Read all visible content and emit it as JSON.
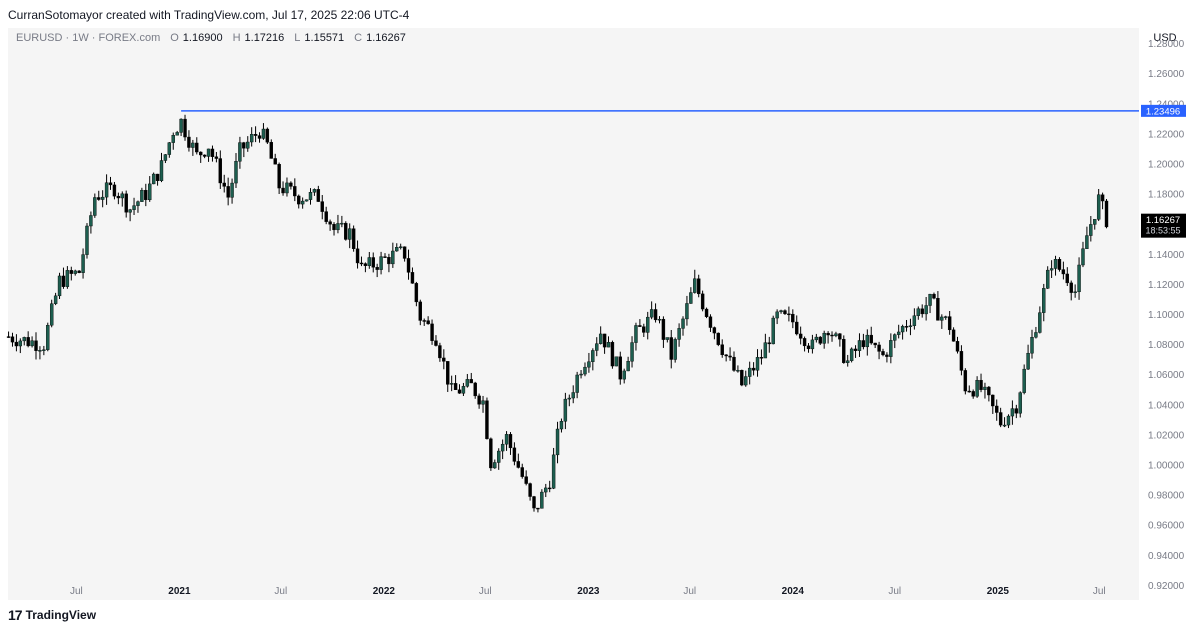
{
  "header": {
    "attribution": "CurranSotomayor created with TradingView.com, Jul 17, 2025 22:06 UTC-4"
  },
  "legend": {
    "symbol": "EURUSD · 1W · FOREX.com",
    "open_key": "O",
    "open": "1.16900",
    "high_key": "H",
    "high": "1.17216",
    "low_key": "L",
    "low": "1.15571",
    "close_key": "C",
    "close": "1.16267"
  },
  "price_axis": {
    "currency": "USD"
  },
  "footer": {
    "brand": "TradingView",
    "logo_text": "17"
  },
  "colors": {
    "up": "#1d5e4f",
    "down": "#000000",
    "line": "#2962ff",
    "panel": "#f5f5f5"
  },
  "chart_data": {
    "type": "candlestick",
    "symbol": "EURUSD",
    "interval": "1W",
    "ylim": [
      0.91,
      1.29
    ],
    "y_ticks": [
      "1.28000",
      "1.26000",
      "1.24000",
      "1.22000",
      "1.20000",
      "1.18000",
      "1.16000",
      "1.14000",
      "1.12000",
      "1.10000",
      "1.08000",
      "1.06000",
      "1.04000",
      "1.02000",
      "1.00000",
      "0.98000",
      "0.96000",
      "0.94000",
      "0.92000"
    ],
    "x_ticks": [
      {
        "label": "Jul",
        "date": "2020-07-01",
        "bold": false
      },
      {
        "label": "2021",
        "date": "2021-01-01",
        "bold": true
      },
      {
        "label": "Jul",
        "date": "2021-07-01",
        "bold": false
      },
      {
        "label": "2022",
        "date": "2022-01-01",
        "bold": true
      },
      {
        "label": "Jul",
        "date": "2022-07-01",
        "bold": false
      },
      {
        "label": "2023",
        "date": "2023-01-01",
        "bold": true
      },
      {
        "label": "Jul",
        "date": "2023-07-01",
        "bold": false
      },
      {
        "label": "2024",
        "date": "2024-01-01",
        "bold": true
      },
      {
        "label": "Jul",
        "date": "2024-07-01",
        "bold": false
      },
      {
        "label": "2025",
        "date": "2025-01-01",
        "bold": true
      },
      {
        "label": "Jul",
        "date": "2025-07-01",
        "bold": false
      }
    ],
    "x_range": [
      "2020-03-01",
      "2025-09-10"
    ],
    "horizontal_line": {
      "value": 1.23496,
      "label": "1.23496",
      "start_date": "2021-01-04"
    },
    "last_price": {
      "value": 1.16267,
      "label": "1.16267",
      "countdown": "18:53:55"
    },
    "close_series": [
      [
        "2020-03-02",
        1.085
      ],
      [
        "2020-04-06",
        1.082
      ],
      [
        "2020-05-04",
        1.08
      ],
      [
        "2020-06-01",
        1.122
      ],
      [
        "2020-07-06",
        1.128
      ],
      [
        "2020-08-03",
        1.178
      ],
      [
        "2020-09-07",
        1.184
      ],
      [
        "2020-10-05",
        1.17
      ],
      [
        "2020-11-02",
        1.18
      ],
      [
        "2020-11-30",
        1.198
      ],
      [
        "2020-12-21",
        1.222
      ],
      [
        "2021-01-04",
        1.228
      ],
      [
        "2021-02-01",
        1.205
      ],
      [
        "2021-02-22",
        1.212
      ],
      [
        "2021-03-29",
        1.178
      ],
      [
        "2021-04-19",
        1.208
      ],
      [
        "2021-05-24",
        1.222
      ],
      [
        "2021-06-07",
        1.212
      ],
      [
        "2021-06-28",
        1.185
      ],
      [
        "2021-08-02",
        1.178
      ],
      [
        "2021-09-06",
        1.178
      ],
      [
        "2021-10-04",
        1.156
      ],
      [
        "2021-11-01",
        1.154
      ],
      [
        "2021-11-22",
        1.13
      ],
      [
        "2021-12-20",
        1.134
      ],
      [
        "2022-01-24",
        1.14
      ],
      [
        "2022-02-07",
        1.14
      ],
      [
        "2022-03-07",
        1.098
      ],
      [
        "2022-04-04",
        1.085
      ],
      [
        "2022-05-02",
        1.048
      ],
      [
        "2022-06-06",
        1.052
      ],
      [
        "2022-06-27",
        1.042
      ],
      [
        "2022-07-11",
        1.002
      ],
      [
        "2022-08-08",
        1.018
      ],
      [
        "2022-09-05",
        0.992
      ],
      [
        "2022-09-26",
        0.968
      ],
      [
        "2022-10-24",
        0.99
      ],
      [
        "2022-11-14",
        1.032
      ],
      [
        "2022-12-19",
        1.065
      ],
      [
        "2023-01-23",
        1.088
      ],
      [
        "2023-02-27",
        1.06
      ],
      [
        "2023-03-27",
        1.087
      ],
      [
        "2023-05-01",
        1.1
      ],
      [
        "2023-05-29",
        1.072
      ],
      [
        "2023-07-10",
        1.12
      ],
      [
        "2023-08-07",
        1.095
      ],
      [
        "2023-09-04",
        1.072
      ],
      [
        "2023-10-02",
        1.053
      ],
      [
        "2023-11-06",
        1.072
      ],
      [
        "2023-12-04",
        1.098
      ],
      [
        "2024-01-01",
        1.095
      ],
      [
        "2024-02-05",
        1.078
      ],
      [
        "2024-03-04",
        1.092
      ],
      [
        "2024-04-08",
        1.068
      ],
      [
        "2024-05-06",
        1.083
      ],
      [
        "2024-06-10",
        1.072
      ],
      [
        "2024-07-08",
        1.088
      ],
      [
        "2024-08-05",
        1.1
      ],
      [
        "2024-09-02",
        1.108
      ],
      [
        "2024-10-07",
        1.092
      ],
      [
        "2024-11-04",
        1.052
      ],
      [
        "2024-12-02",
        1.05
      ],
      [
        "2025-01-06",
        1.028
      ],
      [
        "2025-02-03",
        1.04
      ],
      [
        "2025-03-03",
        1.083
      ],
      [
        "2025-04-07",
        1.135
      ],
      [
        "2025-05-05",
        1.125
      ],
      [
        "2025-05-19",
        1.115
      ],
      [
        "2025-06-09",
        1.152
      ],
      [
        "2025-06-30",
        1.176
      ],
      [
        "2025-07-14",
        1.163
      ]
    ]
  }
}
